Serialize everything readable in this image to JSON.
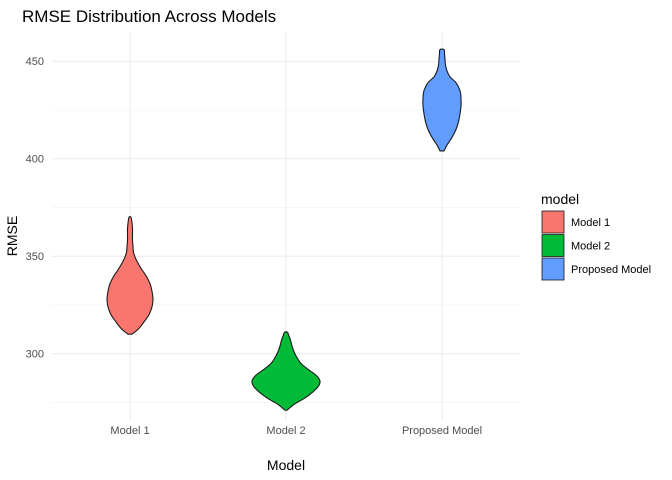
{
  "chart_data": {
    "type": "violin",
    "title": "RMSE Distribution Across Models",
    "xlabel": "Model",
    "ylabel": "RMSE",
    "categories": [
      "Model 1",
      "Model 2",
      "Proposed Model"
    ],
    "ylim": [
      266,
      465
    ],
    "y_ticks": [
      300,
      350,
      400,
      450
    ],
    "y_minor_ticks": [
      275,
      325,
      375,
      425
    ],
    "grid": true,
    "legend": {
      "title": "model",
      "placement": "right",
      "entries": [
        "Model 1",
        "Model 2",
        "Proposed Model"
      ]
    },
    "colors": {
      "Model 1": "#F8766D",
      "Model 2": "#00BA38",
      "Proposed Model": "#619CFF"
    },
    "series": [
      {
        "name": "Model 1",
        "min": 310,
        "max": 370,
        "density_profile": [
          [
            310,
            4
          ],
          [
            313,
            18
          ],
          [
            317,
            30
          ],
          [
            320,
            38
          ],
          [
            324,
            44
          ],
          [
            328,
            46
          ],
          [
            332,
            44
          ],
          [
            336,
            40
          ],
          [
            340,
            32
          ],
          [
            343,
            24
          ],
          [
            346,
            17
          ],
          [
            349,
            11
          ],
          [
            352,
            7
          ],
          [
            355,
            6
          ],
          [
            358,
            5
          ],
          [
            361,
            5
          ],
          [
            364,
            5
          ],
          [
            367,
            4
          ],
          [
            370,
            2
          ]
        ]
      },
      {
        "name": "Model 2",
        "min": 271,
        "max": 311,
        "density_profile": [
          [
            271,
            2
          ],
          [
            274,
            16
          ],
          [
            277,
            36
          ],
          [
            280,
            52
          ],
          [
            283,
            64
          ],
          [
            286,
            68
          ],
          [
            289,
            60
          ],
          [
            292,
            44
          ],
          [
            295,
            30
          ],
          [
            298,
            22
          ],
          [
            301,
            16
          ],
          [
            304,
            12
          ],
          [
            307,
            9
          ],
          [
            309,
            6
          ],
          [
            311,
            3
          ]
        ]
      },
      {
        "name": "Proposed Model",
        "min": 404,
        "max": 456,
        "density_profile": [
          [
            404,
            4
          ],
          [
            407,
            10
          ],
          [
            411,
            20
          ],
          [
            415,
            28
          ],
          [
            419,
            33
          ],
          [
            423,
            36
          ],
          [
            427,
            38
          ],
          [
            431,
            38
          ],
          [
            435,
            36
          ],
          [
            439,
            28
          ],
          [
            442,
            16
          ],
          [
            445,
            10
          ],
          [
            448,
            7
          ],
          [
            451,
            6
          ],
          [
            454,
            5
          ],
          [
            456,
            4
          ]
        ]
      }
    ]
  }
}
